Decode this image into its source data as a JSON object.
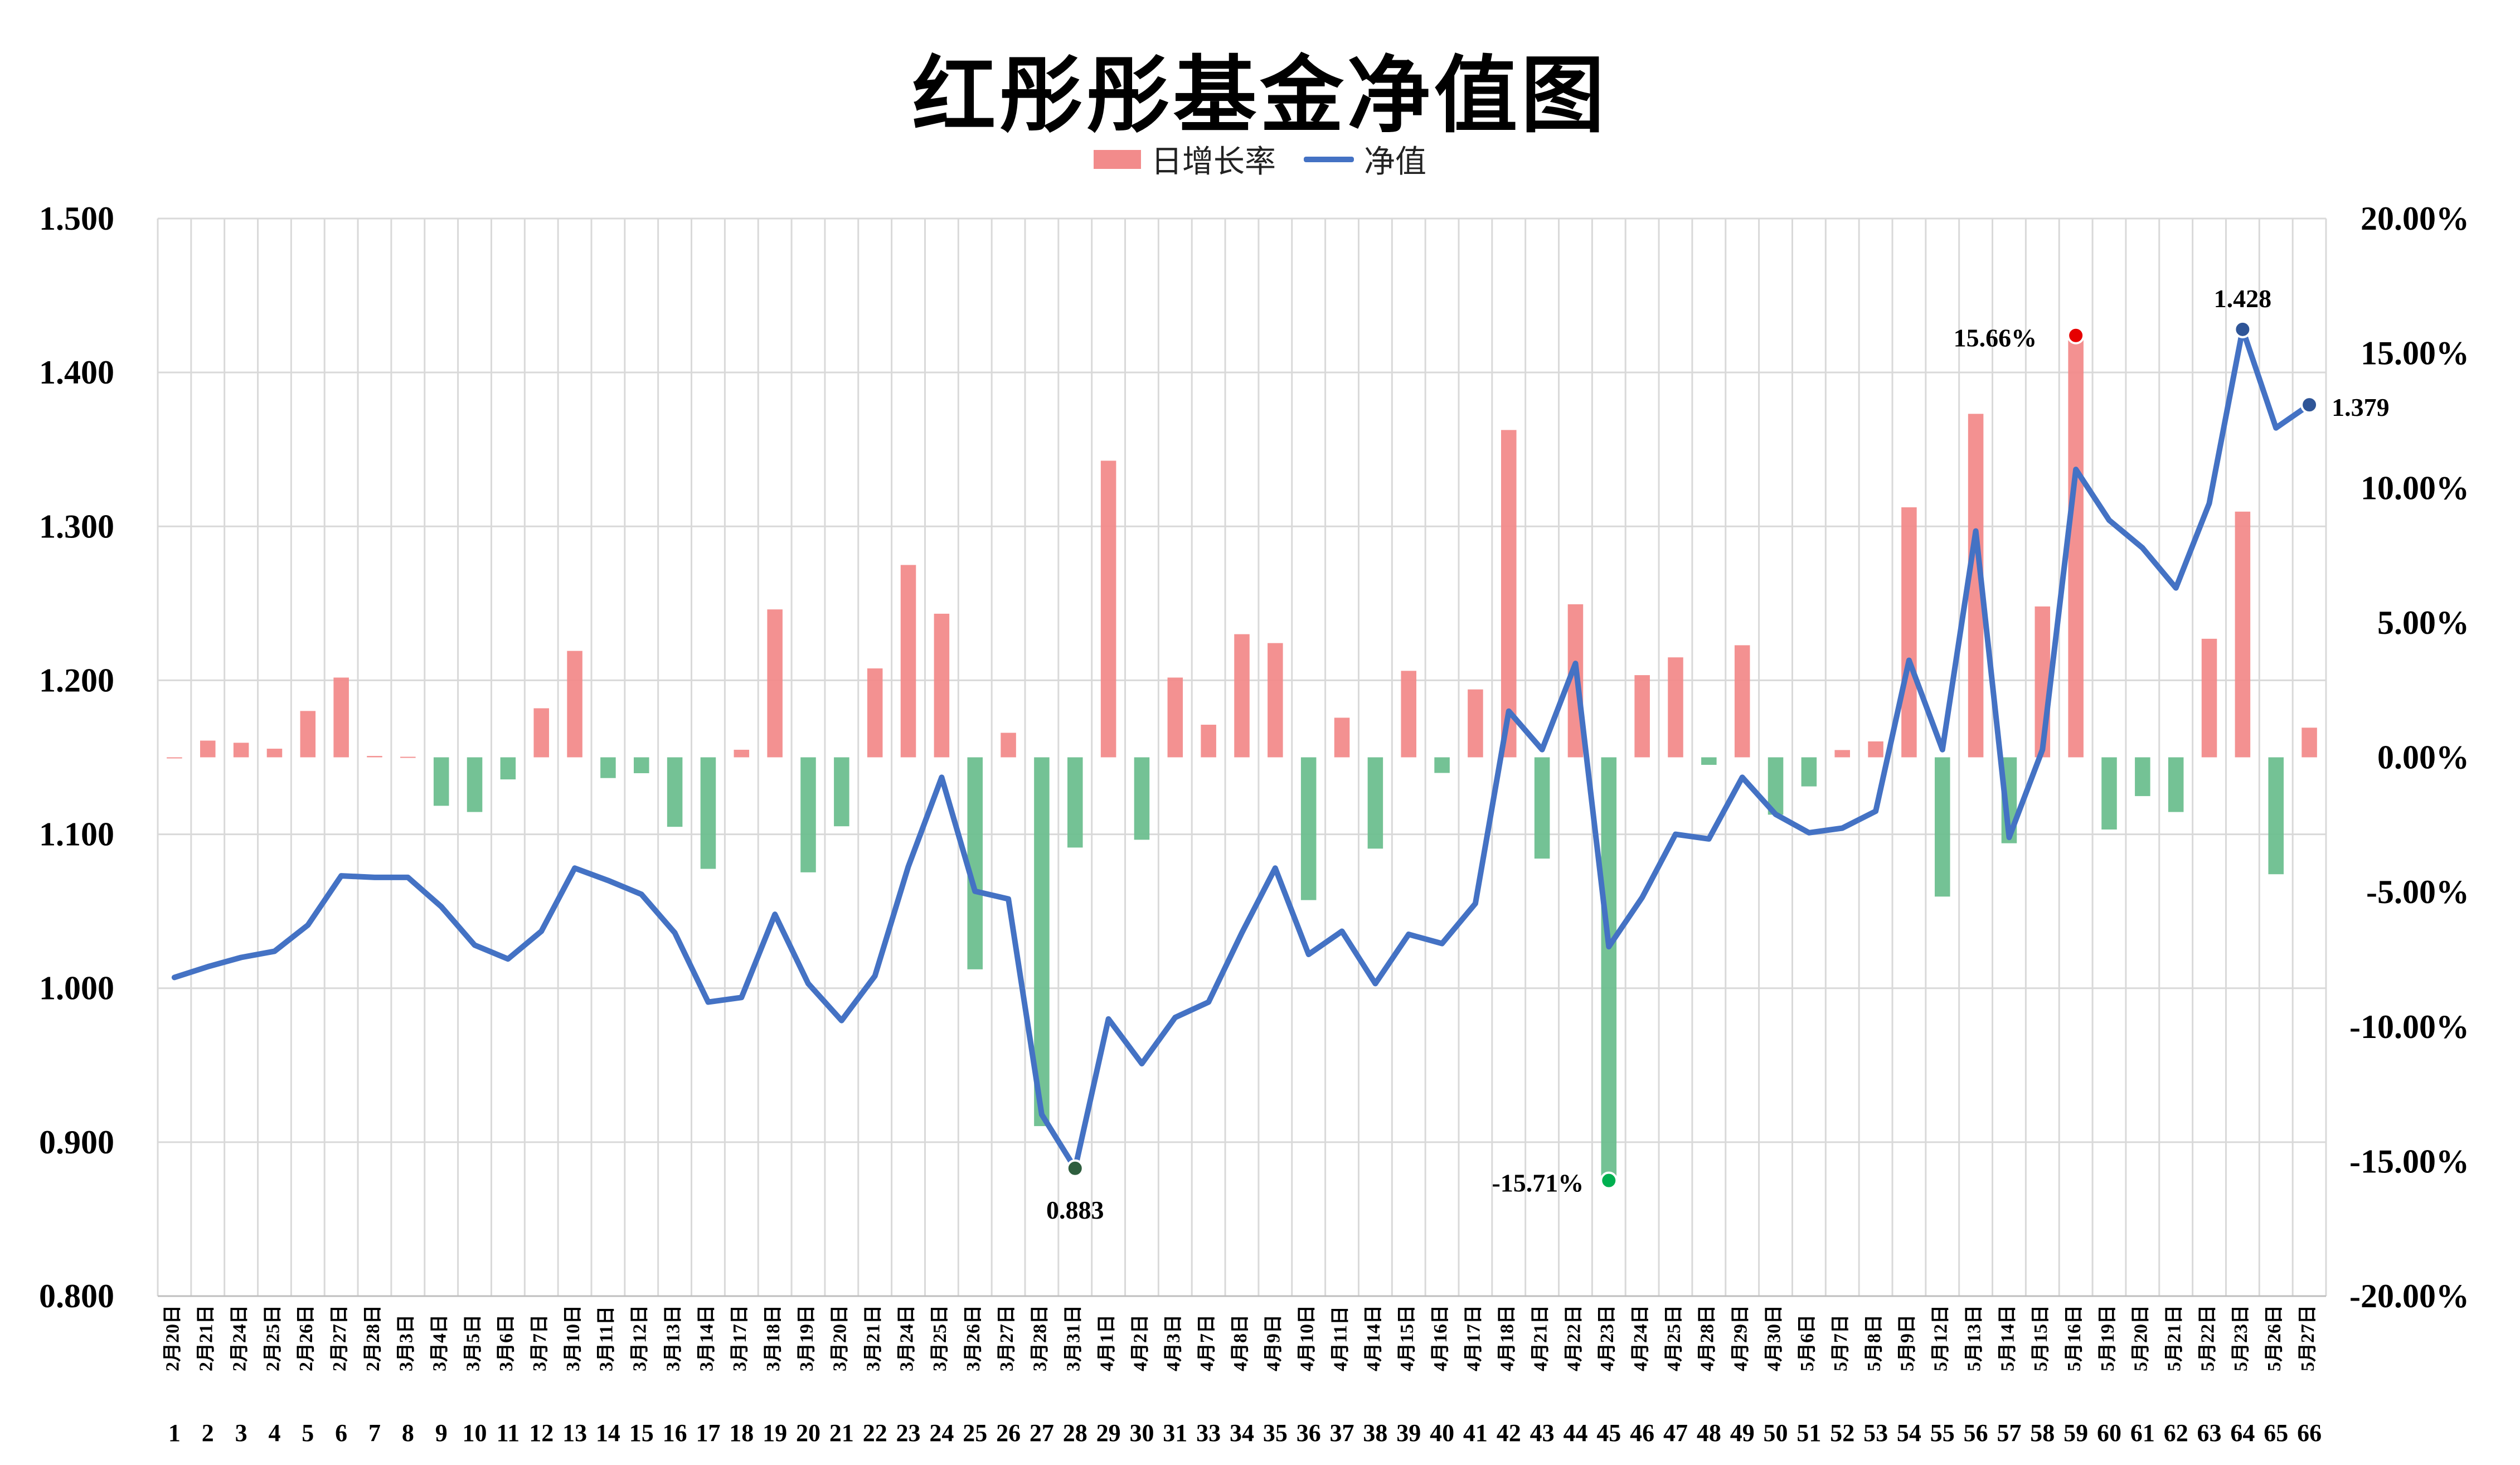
{
  "chart_data": {
    "type": "bar+line",
    "title": "红彤彤基金净值图",
    "legend": {
      "position": "top-center",
      "items": [
        {
          "name": "日增长率",
          "kind": "bar",
          "color": "#f28b8b"
        },
        {
          "name": "净值",
          "kind": "line",
          "color": "#4472c4"
        }
      ]
    },
    "colors": {
      "positive_bar": "#f28b8b",
      "negative_bar": "#6dbf8f",
      "line": "#4472c4",
      "grid": "#d9d9d9"
    },
    "grid": true,
    "left_axis": {
      "min": 0.8,
      "max": 1.5,
      "step": 0.1,
      "ticks": [
        "0.800",
        "0.900",
        "1.000",
        "1.100",
        "1.200",
        "1.300",
        "1.400",
        "1.500"
      ]
    },
    "right_axis": {
      "min": -20,
      "max": 20,
      "step": 5,
      "ticks": [
        "-20.00%",
        "-15.00%",
        "-10.00%",
        "-5.00%",
        "0.00%",
        "5.00%",
        "10.00%",
        "15.00%",
        "20.00%"
      ]
    },
    "dates": [
      "2月20日",
      "2月21日",
      "2月24日",
      "2月25日",
      "2月26日",
      "2月27日",
      "2月28日",
      "3月3日",
      "3月4日",
      "3月5日",
      "3月6日",
      "3月7日",
      "3月10日",
      "3月11日",
      "3月12日",
      "3月13日",
      "3月14日",
      "3月17日",
      "3月18日",
      "3月19日",
      "3月20日",
      "3月21日",
      "3月24日",
      "3月25日",
      "3月26日",
      "3月27日",
      "3月28日",
      "3月31日",
      "4月1日",
      "4月2日",
      "4月3日",
      "4月7日",
      "4月8日",
      "4月9日",
      "4月10日",
      "4月11日",
      "4月14日",
      "4月15日",
      "4月16日",
      "4月17日",
      "4月18日",
      "4月21日",
      "4月22日",
      "4月23日",
      "4月24日",
      "4月25日",
      "4月28日",
      "4月29日",
      "4月30日",
      "5月6日",
      "5月7日",
      "5月8日",
      "5月9日",
      "5月12日",
      "5月13日",
      "5月14日",
      "5月15日",
      "5月16日",
      "5月19日",
      "5月20日",
      "5月21日",
      "5月22日",
      "5月23日",
      "5月26日",
      "5月27日"
    ],
    "index": [
      "1",
      "2",
      "3",
      "4",
      "5",
      "6",
      "7",
      "8",
      "9",
      "10",
      "11",
      "12",
      "13",
      "14",
      "15",
      "16",
      "17",
      "18",
      "19",
      "20",
      "21",
      "22",
      "23",
      "24",
      "25",
      "26",
      "27",
      "28",
      "29",
      "30",
      "31",
      "33",
      "34",
      "35",
      "36",
      "37",
      "38",
      "39",
      "40",
      "41",
      "42",
      "43",
      "44",
      "45",
      "46",
      "47",
      "48",
      "49",
      "50",
      "51",
      "52",
      "53",
      "54",
      "55",
      "56",
      "57",
      "58",
      "59",
      "60",
      "61",
      "62",
      "63",
      "64",
      "65",
      "66"
    ],
    "nav": [
      1.007,
      1.014,
      1.02,
      1.024,
      1.041,
      1.073,
      1.072,
      1.072,
      1.053,
      1.028,
      1.019,
      1.037,
      1.078,
      1.07,
      1.061,
      1.036,
      0.991,
      0.994,
      1.048,
      1.003,
      0.979,
      1.008,
      1.079,
      1.137,
      1.063,
      1.058,
      0.918,
      0.883,
      0.98,
      0.951,
      0.981,
      0.991,
      1.036,
      1.078,
      1.022,
      1.037,
      1.003,
      1.035,
      1.029,
      1.055,
      1.18,
      1.155,
      1.211,
      1.027,
      1.059,
      1.1,
      1.097,
      1.137,
      1.113,
      1.101,
      1.104,
      1.115,
      1.213,
      1.155,
      1.297,
      1.098,
      1.155,
      1.337,
      1.304,
      1.286,
      1.26,
      1.315,
      1.428,
      1.364,
      1.379
    ],
    "daily_growth_pct": [
      0,
      0.62,
      0.54,
      0.32,
      1.72,
      2.96,
      0.05,
      0.02,
      -1.8,
      -2.03,
      -0.82,
      1.82,
      3.95,
      -0.77,
      -0.59,
      -2.58,
      -4.14,
      0.28,
      5.49,
      -4.27,
      -2.56,
      3.3,
      7.14,
      5.33,
      -7.87,
      0.91,
      -13.69,
      -3.35,
      11.01,
      -3.06,
      2.96,
      1.21,
      4.57,
      4.24,
      -5.3,
      1.47,
      -3.39,
      3.21,
      -0.58,
      2.52,
      12.15,
      -3.76,
      5.68,
      -15.71,
      3.05,
      3.71,
      -0.28,
      4.16,
      -2.13,
      -1.08,
      0.27,
      0.59,
      9.28,
      -5.17,
      12.75,
      -3.19,
      5.6,
      15.66,
      -2.68,
      -1.44,
      -2.03,
      4.4,
      9.12,
      -4.34,
      1.1
    ],
    "annotations": [
      {
        "label": "0.883",
        "series": "净值",
        "index": 27
      },
      {
        "label": "1.428",
        "series": "净值",
        "index": 62
      },
      {
        "label": "1.379",
        "series": "净值",
        "index": 64
      },
      {
        "label": "15.66%",
        "series": "日增长率",
        "index": 57
      },
      {
        "label": "-15.71%",
        "series": "日增长率",
        "index": 43
      }
    ]
  }
}
